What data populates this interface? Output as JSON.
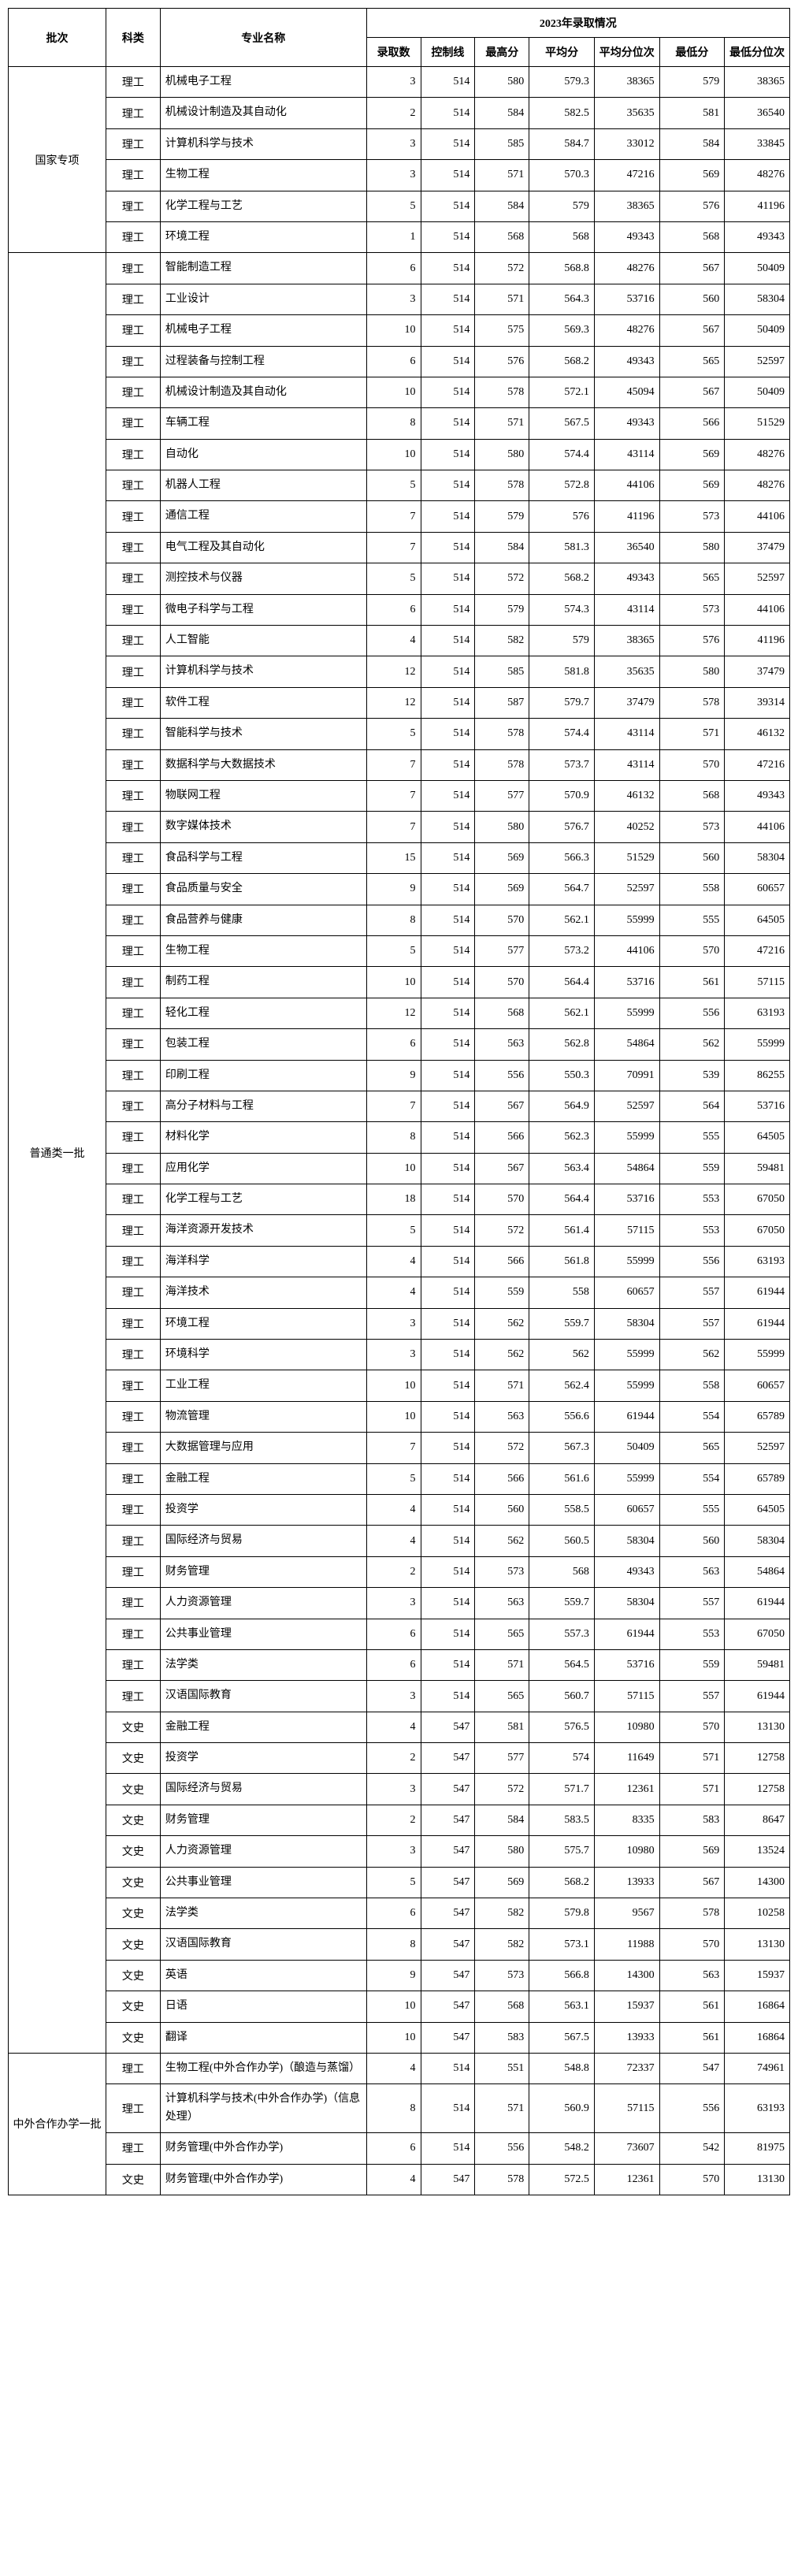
{
  "headers": {
    "batch": "批次",
    "category": "科类",
    "major": "专业名称",
    "year_group": "2023年录取情况",
    "count": "录取数",
    "control": "控制线",
    "max": "最高分",
    "avg": "平均分",
    "avg_rank": "平均分位次",
    "min": "最低分",
    "min_rank": "最低分位次"
  },
  "batches": [
    {
      "name": "国家专项",
      "rows": [
        {
          "cat": "理工",
          "major": "机械电子工程",
          "n": 3,
          "ctrl": 514,
          "max": 580,
          "avg": 579.3,
          "avgr": 38365,
          "min": 579,
          "minr": 38365
        },
        {
          "cat": "理工",
          "major": "机械设计制造及其自动化",
          "n": 2,
          "ctrl": 514,
          "max": 584,
          "avg": 582.5,
          "avgr": 35635,
          "min": 581,
          "minr": 36540
        },
        {
          "cat": "理工",
          "major": "计算机科学与技术",
          "n": 3,
          "ctrl": 514,
          "max": 585,
          "avg": 584.7,
          "avgr": 33012,
          "min": 584,
          "minr": 33845
        },
        {
          "cat": "理工",
          "major": "生物工程",
          "n": 3,
          "ctrl": 514,
          "max": 571,
          "avg": 570.3,
          "avgr": 47216,
          "min": 569,
          "minr": 48276
        },
        {
          "cat": "理工",
          "major": "化学工程与工艺",
          "n": 5,
          "ctrl": 514,
          "max": 584,
          "avg": 579,
          "avgr": 38365,
          "min": 576,
          "minr": 41196
        },
        {
          "cat": "理工",
          "major": "环境工程",
          "n": 1,
          "ctrl": 514,
          "max": 568,
          "avg": 568,
          "avgr": 49343,
          "min": 568,
          "minr": 49343
        }
      ]
    },
    {
      "name": "普通类一批",
      "rows": [
        {
          "cat": "理工",
          "major": "智能制造工程",
          "n": 6,
          "ctrl": 514,
          "max": 572,
          "avg": 568.8,
          "avgr": 48276,
          "min": 567,
          "minr": 50409
        },
        {
          "cat": "理工",
          "major": "工业设计",
          "n": 3,
          "ctrl": 514,
          "max": 571,
          "avg": 564.3,
          "avgr": 53716,
          "min": 560,
          "minr": 58304
        },
        {
          "cat": "理工",
          "major": "机械电子工程",
          "n": 10,
          "ctrl": 514,
          "max": 575,
          "avg": 569.3,
          "avgr": 48276,
          "min": 567,
          "minr": 50409
        },
        {
          "cat": "理工",
          "major": "过程装备与控制工程",
          "n": 6,
          "ctrl": 514,
          "max": 576,
          "avg": 568.2,
          "avgr": 49343,
          "min": 565,
          "minr": 52597
        },
        {
          "cat": "理工",
          "major": "机械设计制造及其自动化",
          "n": 10,
          "ctrl": 514,
          "max": 578,
          "avg": 572.1,
          "avgr": 45094,
          "min": 567,
          "minr": 50409
        },
        {
          "cat": "理工",
          "major": "车辆工程",
          "n": 8,
          "ctrl": 514,
          "max": 571,
          "avg": 567.5,
          "avgr": 49343,
          "min": 566,
          "minr": 51529
        },
        {
          "cat": "理工",
          "major": "自动化",
          "n": 10,
          "ctrl": 514,
          "max": 580,
          "avg": 574.4,
          "avgr": 43114,
          "min": 569,
          "minr": 48276
        },
        {
          "cat": "理工",
          "major": "机器人工程",
          "n": 5,
          "ctrl": 514,
          "max": 578,
          "avg": 572.8,
          "avgr": 44106,
          "min": 569,
          "minr": 48276
        },
        {
          "cat": "理工",
          "major": "通信工程",
          "n": 7,
          "ctrl": 514,
          "max": 579,
          "avg": 576,
          "avgr": 41196,
          "min": 573,
          "minr": 44106
        },
        {
          "cat": "理工",
          "major": "电气工程及其自动化",
          "n": 7,
          "ctrl": 514,
          "max": 584,
          "avg": 581.3,
          "avgr": 36540,
          "min": 580,
          "minr": 37479
        },
        {
          "cat": "理工",
          "major": "测控技术与仪器",
          "n": 5,
          "ctrl": 514,
          "max": 572,
          "avg": 568.2,
          "avgr": 49343,
          "min": 565,
          "minr": 52597
        },
        {
          "cat": "理工",
          "major": "微电子科学与工程",
          "n": 6,
          "ctrl": 514,
          "max": 579,
          "avg": 574.3,
          "avgr": 43114,
          "min": 573,
          "minr": 44106
        },
        {
          "cat": "理工",
          "major": "人工智能",
          "n": 4,
          "ctrl": 514,
          "max": 582,
          "avg": 579,
          "avgr": 38365,
          "min": 576,
          "minr": 41196
        },
        {
          "cat": "理工",
          "major": "计算机科学与技术",
          "n": 12,
          "ctrl": 514,
          "max": 585,
          "avg": 581.8,
          "avgr": 35635,
          "min": 580,
          "minr": 37479
        },
        {
          "cat": "理工",
          "major": "软件工程",
          "n": 12,
          "ctrl": 514,
          "max": 587,
          "avg": 579.7,
          "avgr": 37479,
          "min": 578,
          "minr": 39314
        },
        {
          "cat": "理工",
          "major": "智能科学与技术",
          "n": 5,
          "ctrl": 514,
          "max": 578,
          "avg": 574.4,
          "avgr": 43114,
          "min": 571,
          "minr": 46132
        },
        {
          "cat": "理工",
          "major": "数据科学与大数据技术",
          "n": 7,
          "ctrl": 514,
          "max": 578,
          "avg": 573.7,
          "avgr": 43114,
          "min": 570,
          "minr": 47216
        },
        {
          "cat": "理工",
          "major": "物联网工程",
          "n": 7,
          "ctrl": 514,
          "max": 577,
          "avg": 570.9,
          "avgr": 46132,
          "min": 568,
          "minr": 49343
        },
        {
          "cat": "理工",
          "major": "数字媒体技术",
          "n": 7,
          "ctrl": 514,
          "max": 580,
          "avg": 576.7,
          "avgr": 40252,
          "min": 573,
          "minr": 44106
        },
        {
          "cat": "理工",
          "major": "食品科学与工程",
          "n": 15,
          "ctrl": 514,
          "max": 569,
          "avg": 566.3,
          "avgr": 51529,
          "min": 560,
          "minr": 58304
        },
        {
          "cat": "理工",
          "major": "食品质量与安全",
          "n": 9,
          "ctrl": 514,
          "max": 569,
          "avg": 564.7,
          "avgr": 52597,
          "min": 558,
          "minr": 60657
        },
        {
          "cat": "理工",
          "major": "食品营养与健康",
          "n": 8,
          "ctrl": 514,
          "max": 570,
          "avg": 562.1,
          "avgr": 55999,
          "min": 555,
          "minr": 64505
        },
        {
          "cat": "理工",
          "major": "生物工程",
          "n": 5,
          "ctrl": 514,
          "max": 577,
          "avg": 573.2,
          "avgr": 44106,
          "min": 570,
          "minr": 47216
        },
        {
          "cat": "理工",
          "major": "制药工程",
          "n": 10,
          "ctrl": 514,
          "max": 570,
          "avg": 564.4,
          "avgr": 53716,
          "min": 561,
          "minr": 57115
        },
        {
          "cat": "理工",
          "major": "轻化工程",
          "n": 12,
          "ctrl": 514,
          "max": 568,
          "avg": 562.1,
          "avgr": 55999,
          "min": 556,
          "minr": 63193
        },
        {
          "cat": "理工",
          "major": "包装工程",
          "n": 6,
          "ctrl": 514,
          "max": 563,
          "avg": 562.8,
          "avgr": 54864,
          "min": 562,
          "minr": 55999
        },
        {
          "cat": "理工",
          "major": "印刷工程",
          "n": 9,
          "ctrl": 514,
          "max": 556,
          "avg": 550.3,
          "avgr": 70991,
          "min": 539,
          "minr": 86255
        },
        {
          "cat": "理工",
          "major": "高分子材料与工程",
          "n": 7,
          "ctrl": 514,
          "max": 567,
          "avg": 564.9,
          "avgr": 52597,
          "min": 564,
          "minr": 53716
        },
        {
          "cat": "理工",
          "major": "材料化学",
          "n": 8,
          "ctrl": 514,
          "max": 566,
          "avg": 562.3,
          "avgr": 55999,
          "min": 555,
          "minr": 64505
        },
        {
          "cat": "理工",
          "major": "应用化学",
          "n": 10,
          "ctrl": 514,
          "max": 567,
          "avg": 563.4,
          "avgr": 54864,
          "min": 559,
          "minr": 59481
        },
        {
          "cat": "理工",
          "major": "化学工程与工艺",
          "n": 18,
          "ctrl": 514,
          "max": 570,
          "avg": 564.4,
          "avgr": 53716,
          "min": 553,
          "minr": 67050
        },
        {
          "cat": "理工",
          "major": "海洋资源开发技术",
          "n": 5,
          "ctrl": 514,
          "max": 572,
          "avg": 561.4,
          "avgr": 57115,
          "min": 553,
          "minr": 67050
        },
        {
          "cat": "理工",
          "major": "海洋科学",
          "n": 4,
          "ctrl": 514,
          "max": 566,
          "avg": 561.8,
          "avgr": 55999,
          "min": 556,
          "minr": 63193
        },
        {
          "cat": "理工",
          "major": "海洋技术",
          "n": 4,
          "ctrl": 514,
          "max": 559,
          "avg": 558,
          "avgr": 60657,
          "min": 557,
          "minr": 61944
        },
        {
          "cat": "理工",
          "major": "环境工程",
          "n": 3,
          "ctrl": 514,
          "max": 562,
          "avg": 559.7,
          "avgr": 58304,
          "min": 557,
          "minr": 61944
        },
        {
          "cat": "理工",
          "major": "环境科学",
          "n": 3,
          "ctrl": 514,
          "max": 562,
          "avg": 562,
          "avgr": 55999,
          "min": 562,
          "minr": 55999
        },
        {
          "cat": "理工",
          "major": "工业工程",
          "n": 10,
          "ctrl": 514,
          "max": 571,
          "avg": 562.4,
          "avgr": 55999,
          "min": 558,
          "minr": 60657
        },
        {
          "cat": "理工",
          "major": "物流管理",
          "n": 10,
          "ctrl": 514,
          "max": 563,
          "avg": 556.6,
          "avgr": 61944,
          "min": 554,
          "minr": 65789
        },
        {
          "cat": "理工",
          "major": "大数据管理与应用",
          "n": 7,
          "ctrl": 514,
          "max": 572,
          "avg": 567.3,
          "avgr": 50409,
          "min": 565,
          "minr": 52597
        },
        {
          "cat": "理工",
          "major": "金融工程",
          "n": 5,
          "ctrl": 514,
          "max": 566,
          "avg": 561.6,
          "avgr": 55999,
          "min": 554,
          "minr": 65789
        },
        {
          "cat": "理工",
          "major": "投资学",
          "n": 4,
          "ctrl": 514,
          "max": 560,
          "avg": 558.5,
          "avgr": 60657,
          "min": 555,
          "minr": 64505
        },
        {
          "cat": "理工",
          "major": "国际经济与贸易",
          "n": 4,
          "ctrl": 514,
          "max": 562,
          "avg": 560.5,
          "avgr": 58304,
          "min": 560,
          "minr": 58304
        },
        {
          "cat": "理工",
          "major": "财务管理",
          "n": 2,
          "ctrl": 514,
          "max": 573,
          "avg": 568,
          "avgr": 49343,
          "min": 563,
          "minr": 54864
        },
        {
          "cat": "理工",
          "major": "人力资源管理",
          "n": 3,
          "ctrl": 514,
          "max": 563,
          "avg": 559.7,
          "avgr": 58304,
          "min": 557,
          "minr": 61944
        },
        {
          "cat": "理工",
          "major": "公共事业管理",
          "n": 6,
          "ctrl": 514,
          "max": 565,
          "avg": 557.3,
          "avgr": 61944,
          "min": 553,
          "minr": 67050
        },
        {
          "cat": "理工",
          "major": "法学类",
          "n": 6,
          "ctrl": 514,
          "max": 571,
          "avg": 564.5,
          "avgr": 53716,
          "min": 559,
          "minr": 59481
        },
        {
          "cat": "理工",
          "major": "汉语国际教育",
          "n": 3,
          "ctrl": 514,
          "max": 565,
          "avg": 560.7,
          "avgr": 57115,
          "min": 557,
          "minr": 61944
        },
        {
          "cat": "文史",
          "major": "金融工程",
          "n": 4,
          "ctrl": 547,
          "max": 581,
          "avg": 576.5,
          "avgr": 10980,
          "min": 570,
          "minr": 13130
        },
        {
          "cat": "文史",
          "major": "投资学",
          "n": 2,
          "ctrl": 547,
          "max": 577,
          "avg": 574,
          "avgr": 11649,
          "min": 571,
          "minr": 12758
        },
        {
          "cat": "文史",
          "major": "国际经济与贸易",
          "n": 3,
          "ctrl": 547,
          "max": 572,
          "avg": 571.7,
          "avgr": 12361,
          "min": 571,
          "minr": 12758
        },
        {
          "cat": "文史",
          "major": "财务管理",
          "n": 2,
          "ctrl": 547,
          "max": 584,
          "avg": 583.5,
          "avgr": 8335,
          "min": 583,
          "minr": 8647
        },
        {
          "cat": "文史",
          "major": "人力资源管理",
          "n": 3,
          "ctrl": 547,
          "max": 580,
          "avg": 575.7,
          "avgr": 10980,
          "min": 569,
          "minr": 13524
        },
        {
          "cat": "文史",
          "major": "公共事业管理",
          "n": 5,
          "ctrl": 547,
          "max": 569,
          "avg": 568.2,
          "avgr": 13933,
          "min": 567,
          "minr": 14300
        },
        {
          "cat": "文史",
          "major": "法学类",
          "n": 6,
          "ctrl": 547,
          "max": 582,
          "avg": 579.8,
          "avgr": 9567,
          "min": 578,
          "minr": 10258
        },
        {
          "cat": "文史",
          "major": "汉语国际教育",
          "n": 8,
          "ctrl": 547,
          "max": 582,
          "avg": 573.1,
          "avgr": 11988,
          "min": 570,
          "minr": 13130
        },
        {
          "cat": "文史",
          "major": "英语",
          "n": 9,
          "ctrl": 547,
          "max": 573,
          "avg": 566.8,
          "avgr": 14300,
          "min": 563,
          "minr": 15937
        },
        {
          "cat": "文史",
          "major": "日语",
          "n": 10,
          "ctrl": 547,
          "max": 568,
          "avg": 563.1,
          "avgr": 15937,
          "min": 561,
          "minr": 16864
        },
        {
          "cat": "文史",
          "major": "翻译",
          "n": 10,
          "ctrl": 547,
          "max": 583,
          "avg": 567.5,
          "avgr": 13933,
          "min": 561,
          "minr": 16864
        }
      ]
    },
    {
      "name": "中外合作办学一批",
      "rows": [
        {
          "cat": "理工",
          "major": "生物工程(中外合作办学)（酿造与蒸馏）",
          "n": 4,
          "ctrl": 514,
          "max": 551,
          "avg": 548.8,
          "avgr": 72337,
          "min": 547,
          "minr": 74961
        },
        {
          "cat": "理工",
          "major": "计算机科学与技术(中外合作办学)（信息处理）",
          "n": 8,
          "ctrl": 514,
          "max": 571,
          "avg": 560.9,
          "avgr": 57115,
          "min": 556,
          "minr": 63193
        },
        {
          "cat": "理工",
          "major": "财务管理(中外合作办学)",
          "n": 6,
          "ctrl": 514,
          "max": 556,
          "avg": 548.2,
          "avgr": 73607,
          "min": 542,
          "minr": 81975
        },
        {
          "cat": "文史",
          "major": "财务管理(中外合作办学)",
          "n": 4,
          "ctrl": 547,
          "max": 578,
          "avg": 572.5,
          "avgr": 12361,
          "min": 570,
          "minr": 13130
        }
      ]
    }
  ]
}
